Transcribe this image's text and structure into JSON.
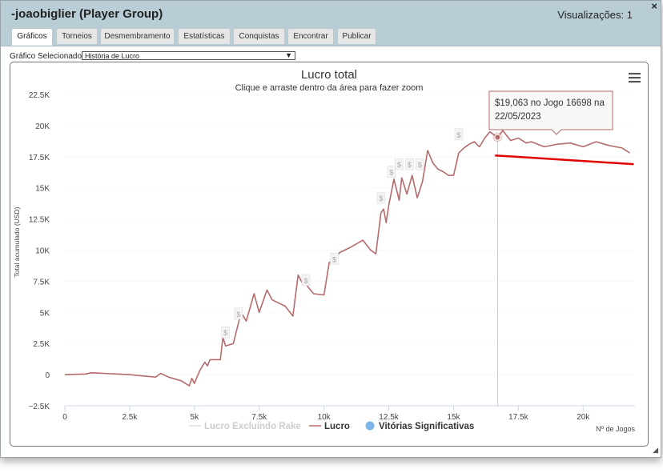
{
  "window": {
    "title": "-joaobiglier (Player Group)",
    "views": "Visualizações: 1",
    "close": "×",
    "grip": "◢"
  },
  "tabs": [
    {
      "label": "Gráficos",
      "active": true
    },
    {
      "label": "Torneios",
      "active": false
    },
    {
      "label": "Desmembramento",
      "active": false
    },
    {
      "label": "Estatísticas",
      "active": false
    },
    {
      "label": "Conquistas",
      "active": false
    },
    {
      "label": "Encontrar",
      "active": false
    },
    {
      "label": "Publicar",
      "active": false
    }
  ],
  "selector": {
    "label": "Gráfico Selecionado:",
    "value": "História de Lucro"
  },
  "chart_menu_icon": "hamburger-menu-icon",
  "tooltip": {
    "line1": "$19,063 no Jogo 16698 na",
    "line2": "22/05/2023"
  },
  "colors": {
    "series": "#b56b6b",
    "trend": "#e00000",
    "marker": "#7cb5ec",
    "grid": "#e6e6e6"
  },
  "chart_data": {
    "type": "line",
    "title": "Lucro total",
    "subtitle": "Clique e arraste dentro da área para fazer zoom",
    "xlabel": "Nº de Jogos",
    "ylabel": "Total acumulado (USD)",
    "xlim": [
      0,
      22000
    ],
    "ylim": [
      -2500,
      22500
    ],
    "xticks": [
      0,
      2500,
      5000,
      7500,
      10000,
      12500,
      15000,
      17500,
      20000
    ],
    "xtick_labels": [
      "0",
      "2.5k",
      "5k",
      "7.5k",
      "10k",
      "12.5k",
      "15k",
      "17.5k",
      "20k"
    ],
    "yticks": [
      -2500,
      0,
      2500,
      5000,
      7500,
      10000,
      12500,
      15000,
      17500,
      20000,
      22500
    ],
    "ytick_labels": [
      "−2.5K",
      "0",
      "2.5K",
      "5K",
      "7.5K",
      "10K",
      "12.5K",
      "15K",
      "17.5K",
      "20K",
      "22.5K"
    ],
    "legend": [
      "Lucro Excluindo Rake",
      "Lucro",
      "Vitórias Significativas"
    ],
    "legend_position": "bottom",
    "series": [
      {
        "name": "Lucro",
        "x": [
          0,
          800,
          1000,
          1500,
          2000,
          2500,
          3000,
          3500,
          3700,
          4000,
          4500,
          4800,
          4900,
          5000,
          5200,
          5400,
          5500,
          5600,
          6000,
          6100,
          6200,
          6500,
          6800,
          7000,
          7300,
          7500,
          7800,
          8000,
          8500,
          8800,
          9000,
          9200,
          9300,
          9400,
          9600,
          10000,
          10200,
          10400,
          10600,
          11000,
          11500,
          11800,
          12000,
          12200,
          12300,
          12400,
          12500,
          12700,
          12900,
          13000,
          13200,
          13400,
          13600,
          13800,
          14000,
          14200,
          14400,
          14600,
          14800,
          15000,
          15200,
          15400,
          15600,
          15800,
          16000,
          16200,
          16400,
          16600,
          16698,
          16900,
          17200,
          17500,
          17800,
          18000,
          18500,
          19000,
          19500,
          20000,
          20500,
          21000,
          21500,
          21800
        ],
        "y": [
          0,
          50,
          150,
          100,
          50,
          0,
          -100,
          -200,
          100,
          -200,
          -500,
          -900,
          -300,
          -700,
          300,
          1000,
          700,
          1200,
          1200,
          3000,
          2300,
          2500,
          5000,
          4300,
          6500,
          5000,
          6800,
          6000,
          5500,
          4700,
          8000,
          7200,
          7300,
          7000,
          6500,
          6400,
          9000,
          9200,
          9800,
          10200,
          10800,
          10000,
          9700,
          13000,
          13300,
          12200,
          13600,
          15700,
          14000,
          15800,
          14500,
          16000,
          14200,
          15500,
          18000,
          17000,
          16500,
          16300,
          16000,
          16000,
          17800,
          18200,
          18500,
          18700,
          18300,
          19000,
          19500,
          19200,
          19063,
          19600,
          18800,
          19000,
          18600,
          18700,
          18300,
          18500,
          18600,
          18300,
          18700,
          18400,
          18200,
          17800
        ]
      }
    ],
    "trend_line": {
      "x": [
        16600,
        21950
      ],
      "y": [
        17600,
        16900
      ]
    },
    "tooltip_point": {
      "x": 16698,
      "y": 19063
    },
    "significant_win_markers": [
      {
        "x": 6200,
        "y": 3400
      },
      {
        "x": 6700,
        "y": 4900
      },
      {
        "x": 9300,
        "y": 7600
      },
      {
        "x": 10400,
        "y": 9300
      },
      {
        "x": 12200,
        "y": 14200
      },
      {
        "x": 12600,
        "y": 16300
      },
      {
        "x": 12900,
        "y": 16900
      },
      {
        "x": 13300,
        "y": 16900
      },
      {
        "x": 13700,
        "y": 16900
      },
      {
        "x": 15200,
        "y": 19300
      }
    ]
  }
}
